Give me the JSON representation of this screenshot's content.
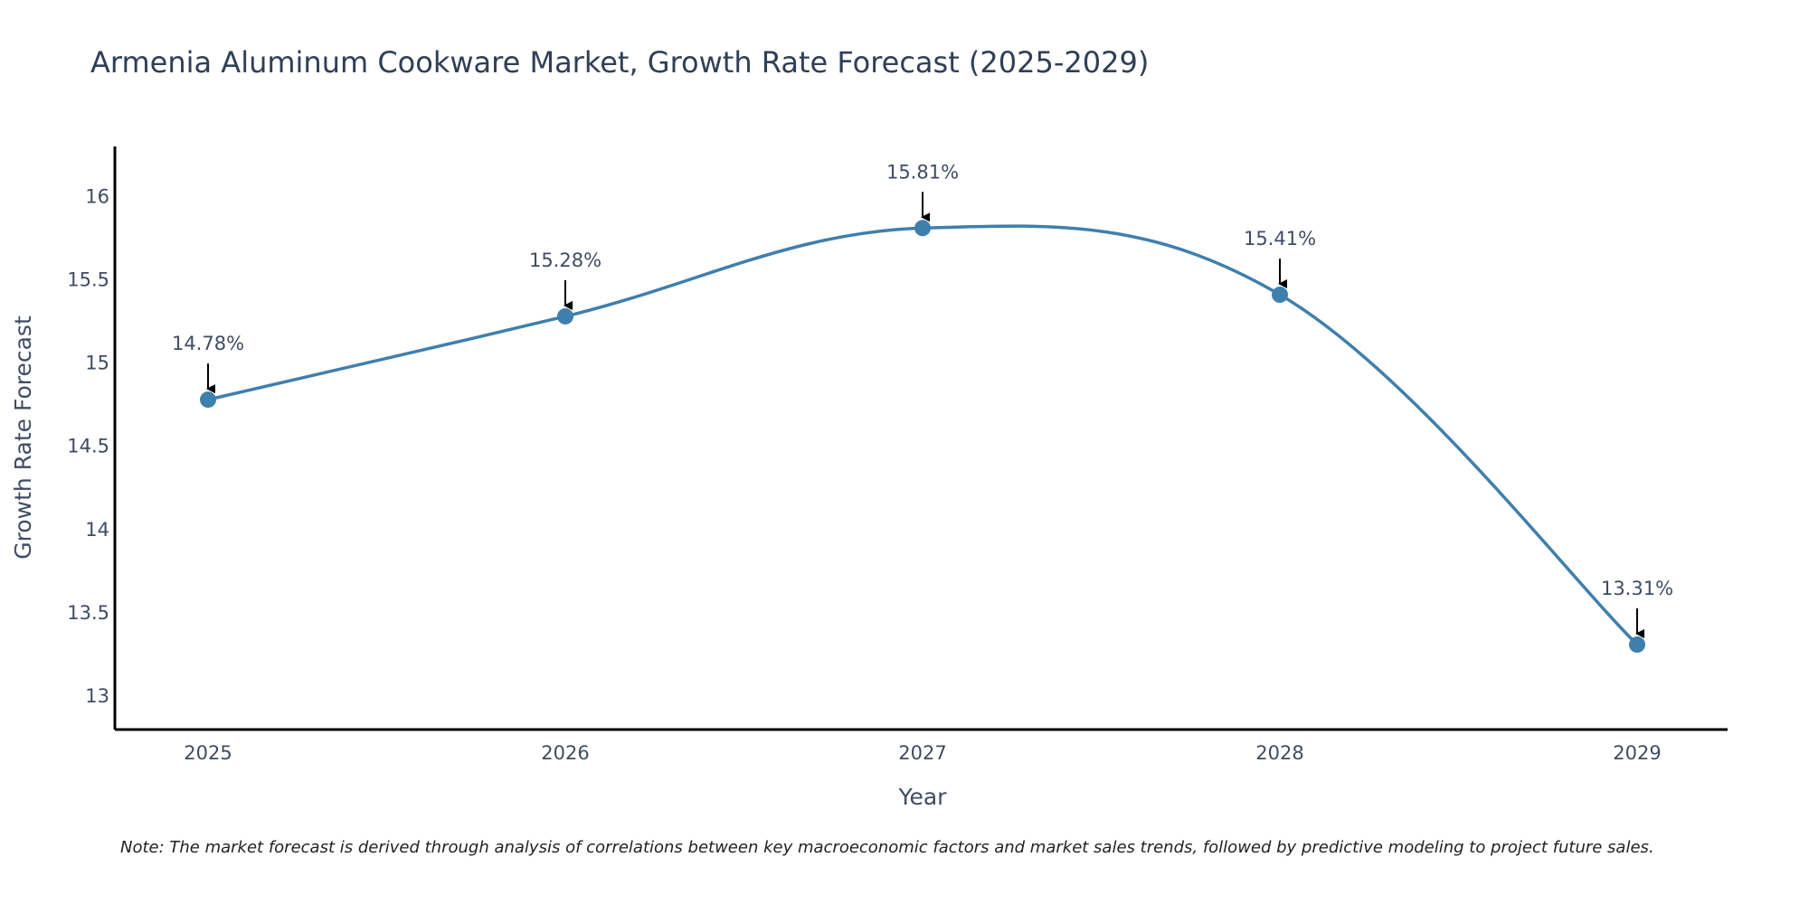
{
  "chart_data": {
    "type": "line",
    "title": "Armenia Aluminum Cookware Market, Growth Rate Forecast (2025-2029)",
    "xlabel": "Year",
    "ylabel": "Growth Rate Forecast",
    "categories": [
      "2025",
      "2026",
      "2027",
      "2028",
      "2029"
    ],
    "values": [
      14.78,
      15.28,
      15.81,
      15.41,
      13.31
    ],
    "value_labels": [
      "14.78%",
      "15.28%",
      "15.81%",
      "15.41%",
      "13.31%"
    ],
    "y_ticks": [
      13,
      13.5,
      14,
      14.5,
      15,
      15.5,
      16
    ],
    "y_tick_labels": [
      "13",
      "13.5",
      "14",
      "14.5",
      "15",
      "15.5",
      "16"
    ],
    "ylim": [
      12.8,
      16.3
    ],
    "grid": false,
    "line_color": "#3f7fad",
    "note": "Note: The market forecast is derived through analysis of correlations between key macroeconomic factors and market sales trends, followed by predictive modeling to project future sales."
  }
}
